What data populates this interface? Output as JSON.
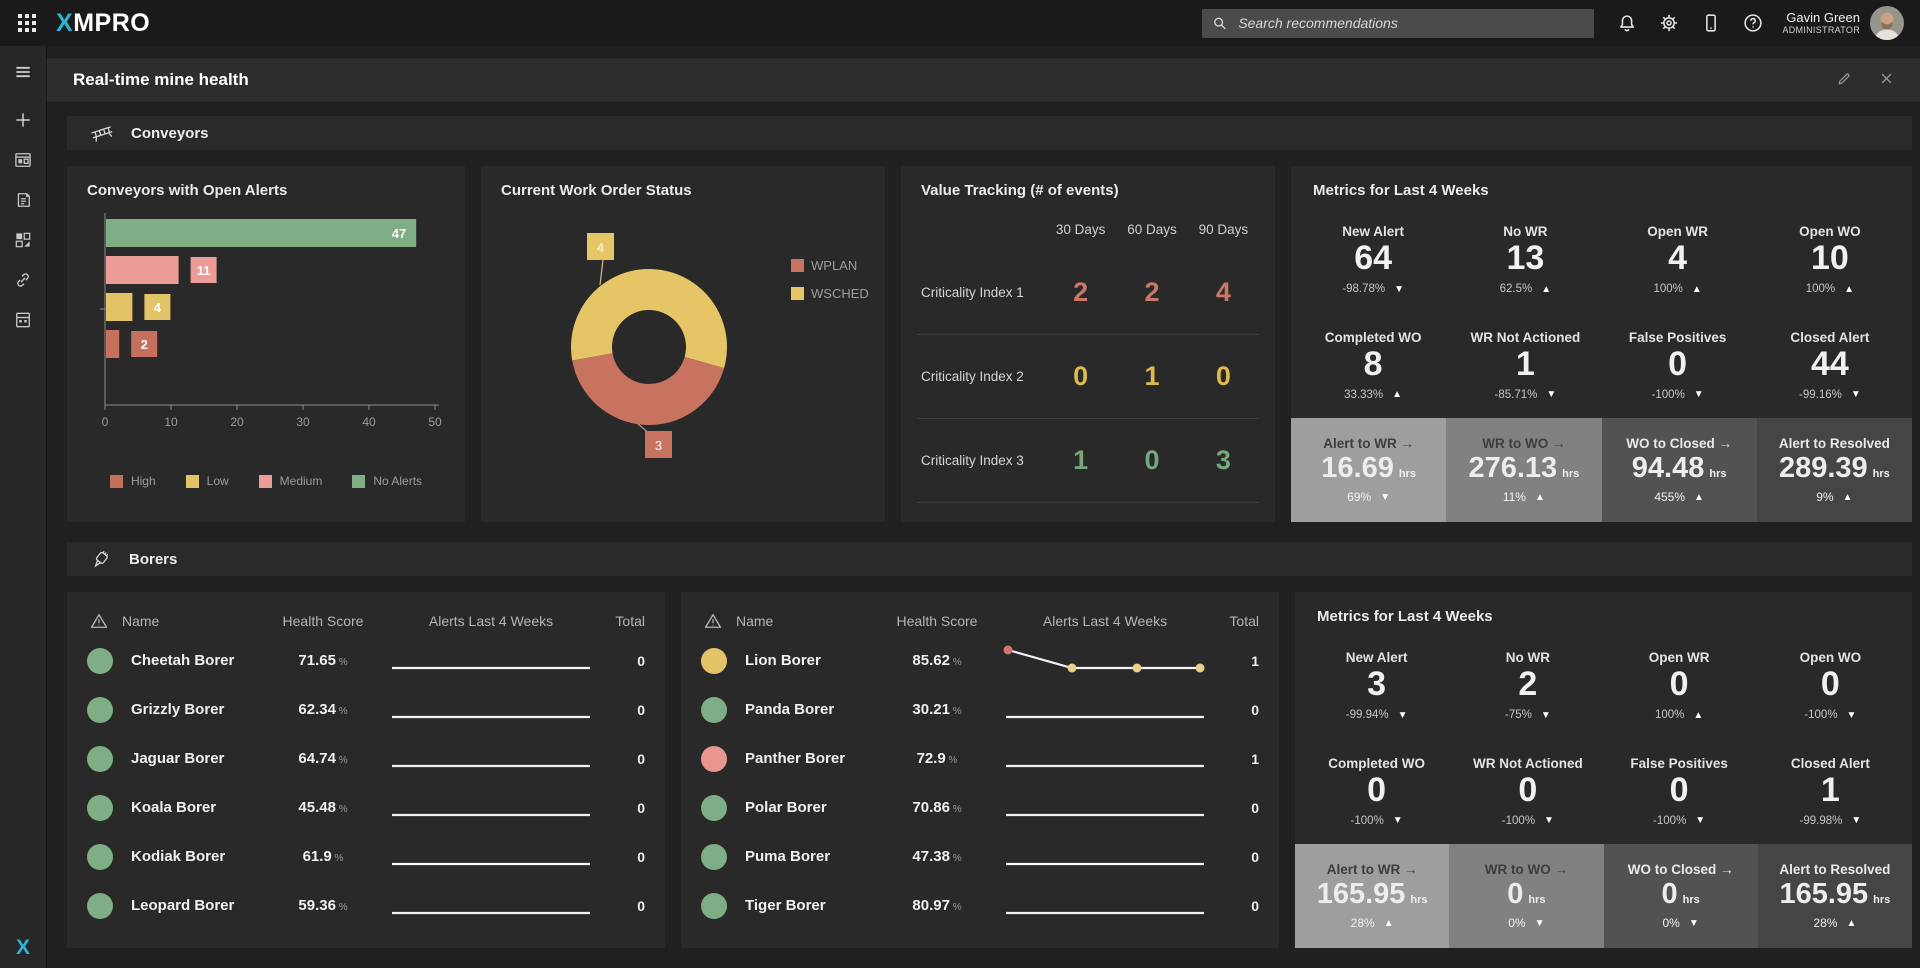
{
  "topbar": {
    "logo_x": "X",
    "logo_rest": "MPRO",
    "search_placeholder": "Search recommendations",
    "user_name": "Gavin Green",
    "user_role": "ADMINISTRATOR"
  },
  "page": {
    "title": "Real-time mine health"
  },
  "sections": {
    "conveyors": "Conveyors",
    "borers": "Borers"
  },
  "chart_data": [
    {
      "id": "conveyors_open_alerts",
      "type": "bar",
      "orientation": "horizontal",
      "title": "Conveyors with Open Alerts",
      "categories": [
        "No Alerts",
        "Medium",
        "Low",
        "High"
      ],
      "values": [
        47,
        11,
        4,
        2
      ],
      "colors": [
        "#7fae84",
        "#ec9c96",
        "#e3c368",
        "#c4705c"
      ],
      "xlim": [
        0,
        50
      ],
      "xticks": [
        0,
        10,
        20,
        30,
        40,
        50
      ],
      "legend": [
        {
          "label": "High",
          "color": "#c4705c"
        },
        {
          "label": "Low",
          "color": "#e3c368"
        },
        {
          "label": "Medium",
          "color": "#ec9c96"
        },
        {
          "label": "No Alerts",
          "color": "#7fae84"
        }
      ]
    },
    {
      "id": "current_work_order_status",
      "type": "pie",
      "donut": true,
      "title": "Current Work Order Status",
      "start_angle_deg": -100,
      "slices": [
        {
          "label": "WSCHED",
          "value": 4,
          "color": "#e5c566"
        },
        {
          "label": "WPLAN",
          "value": 3,
          "color": "#c8735f"
        }
      ],
      "legend": [
        {
          "label": "WPLAN",
          "color": "#c8735f"
        },
        {
          "label": "WSCHED",
          "color": "#e5c566"
        }
      ]
    },
    {
      "id": "value_tracking",
      "type": "table",
      "title": "Value Tracking (# of events)",
      "columns": [
        "30 Days",
        "60 Days",
        "90 Days"
      ],
      "rows": [
        {
          "label": "Criticality Index 1",
          "values": [
            2,
            2,
            4
          ],
          "color": "#c97767"
        },
        {
          "label": "Criticality Index 2",
          "values": [
            0,
            1,
            0
          ],
          "color": "#ddb94f"
        },
        {
          "label": "Criticality Index 3",
          "values": [
            1,
            0,
            3
          ],
          "color": "#74a87b"
        }
      ]
    },
    {
      "id": "lion_borer_alerts_sparkline",
      "type": "line",
      "title": "Alerts Last 4 Weeks",
      "values": [
        1,
        0,
        0,
        0
      ],
      "point_colors": [
        "#d4756d",
        "#ead08b",
        "#ead08b",
        "#ead08b"
      ]
    }
  ],
  "conveyors_metrics": {
    "title": "Metrics for Last 4 Weeks",
    "cells": [
      {
        "label": "New Alert",
        "value": "64",
        "delta": "-98.78%",
        "dir": "down"
      },
      {
        "label": "No WR",
        "value": "13",
        "delta": "62.5%",
        "dir": "up"
      },
      {
        "label": "Open WR",
        "value": "4",
        "delta": "100%",
        "dir": "up"
      },
      {
        "label": "Open WO",
        "value": "10",
        "delta": "100%",
        "dir": "up"
      },
      {
        "label": "Completed WO",
        "value": "8",
        "delta": "33.33%",
        "dir": "up"
      },
      {
        "label": "WR Not Actioned",
        "value": "1",
        "delta": "-85.71%",
        "dir": "down"
      },
      {
        "label": "False Positives",
        "value": "0",
        "delta": "-100%",
        "dir": "down"
      },
      {
        "label": "Closed Alert",
        "value": "44",
        "delta": "-99.16%",
        "dir": "down"
      }
    ],
    "tiles": [
      {
        "label": "Alert to WR →",
        "value": "16.69",
        "unit": "hrs",
        "delta": "69%",
        "dir": "down",
        "bg": "#9e9e9e",
        "dark_text": true
      },
      {
        "label": "WR to WO →",
        "value": "276.13",
        "unit": "hrs",
        "delta": "11%",
        "dir": "up",
        "bg": "#818181",
        "dark_text": true
      },
      {
        "label": "WO to Closed →",
        "value": "94.48",
        "unit": "hrs",
        "delta": "455%",
        "dir": "up",
        "bg": "#525252",
        "dark_text": false
      },
      {
        "label": "Alert to Resolved",
        "value": "289.39",
        "unit": "hrs",
        "delta": "9%",
        "dir": "up",
        "bg": "#454545",
        "dark_text": false
      }
    ]
  },
  "borers_metrics": {
    "title": "Metrics for Last 4 Weeks",
    "cells": [
      {
        "label": "New Alert",
        "value": "3",
        "delta": "-99.94%",
        "dir": "down"
      },
      {
        "label": "No WR",
        "value": "2",
        "delta": "-75%",
        "dir": "down"
      },
      {
        "label": "Open WR",
        "value": "0",
        "delta": "100%",
        "dir": "up"
      },
      {
        "label": "Open WO",
        "value": "0",
        "delta": "-100%",
        "dir": "down"
      },
      {
        "label": "Completed WO",
        "value": "0",
        "delta": "-100%",
        "dir": "down"
      },
      {
        "label": "WR Not Actioned",
        "value": "0",
        "delta": "-100%",
        "dir": "down"
      },
      {
        "label": "False Positives",
        "value": "0",
        "delta": "-100%",
        "dir": "down"
      },
      {
        "label": "Closed Alert",
        "value": "1",
        "delta": "-99.98%",
        "dir": "down"
      }
    ],
    "tiles": [
      {
        "label": "Alert to WR →",
        "value": "165.95",
        "unit": "hrs",
        "delta": "28%",
        "dir": "up",
        "bg": "#9e9e9e",
        "dark_text": true
      },
      {
        "label": "WR to WO →",
        "value": "0",
        "unit": "hrs",
        "delta": "0%",
        "dir": "down",
        "bg": "#818181",
        "dark_text": true
      },
      {
        "label": "WO to Closed →",
        "value": "0",
        "unit": "hrs",
        "delta": "0%",
        "dir": "down",
        "bg": "#525252",
        "dark_text": false
      },
      {
        "label": "Alert to Resolved",
        "value": "165.95",
        "unit": "hrs",
        "delta": "28%",
        "dir": "up",
        "bg": "#454545",
        "dark_text": false
      }
    ]
  },
  "borer_tables": {
    "headers": [
      "Name",
      "Health Score",
      "Alerts Last 4 Weeks",
      "Total"
    ],
    "score_unit": "%",
    "left": [
      {
        "name": "Cheetah Borer",
        "score": "71.65",
        "status_color": "#7fae84",
        "spark": [
          0,
          0,
          0,
          0
        ],
        "total": "0"
      },
      {
        "name": "Grizzly Borer",
        "score": "62.34",
        "status_color": "#7fae84",
        "spark": [
          0,
          0,
          0,
          0
        ],
        "total": "0"
      },
      {
        "name": "Jaguar Borer",
        "score": "64.74",
        "status_color": "#7fae84",
        "spark": [
          0,
          0,
          0,
          0
        ],
        "total": "0"
      },
      {
        "name": "Koala Borer",
        "score": "45.48",
        "status_color": "#7fae84",
        "spark": [
          0,
          0,
          0,
          0
        ],
        "total": "0"
      },
      {
        "name": "Kodiak Borer",
        "score": "61.9",
        "status_color": "#7fae84",
        "spark": [
          0,
          0,
          0,
          0
        ],
        "total": "0"
      },
      {
        "name": "Leopard Borer",
        "score": "59.36",
        "status_color": "#7fae84",
        "spark": [
          0,
          0,
          0,
          0
        ],
        "total": "0"
      }
    ],
    "right": [
      {
        "name": "Lion Borer",
        "score": "85.62",
        "status_color": "#e3c368",
        "spark": [
          1,
          0,
          0,
          0
        ],
        "point_colors": [
          "#d4756d",
          "#ead08b",
          "#ead08b",
          "#ead08b"
        ],
        "total": "1"
      },
      {
        "name": "Panda Borer",
        "score": "30.21",
        "status_color": "#7fae84",
        "spark": [
          0,
          0,
          0,
          0
        ],
        "total": "0"
      },
      {
        "name": "Panther Borer",
        "score": "72.9",
        "status_color": "#e8968f",
        "spark": [
          0,
          0,
          0,
          0
        ],
        "total": "1"
      },
      {
        "name": "Polar Borer",
        "score": "70.86",
        "status_color": "#7fae84",
        "spark": [
          0,
          0,
          0,
          0
        ],
        "total": "0"
      },
      {
        "name": "Puma Borer",
        "score": "47.38",
        "status_color": "#7fae84",
        "spark": [
          0,
          0,
          0,
          0
        ],
        "total": "0"
      },
      {
        "name": "Tiger Borer",
        "score": "80.97",
        "status_color": "#7fae84",
        "spark": [
          0,
          0,
          0,
          0
        ],
        "total": "0"
      }
    ]
  }
}
